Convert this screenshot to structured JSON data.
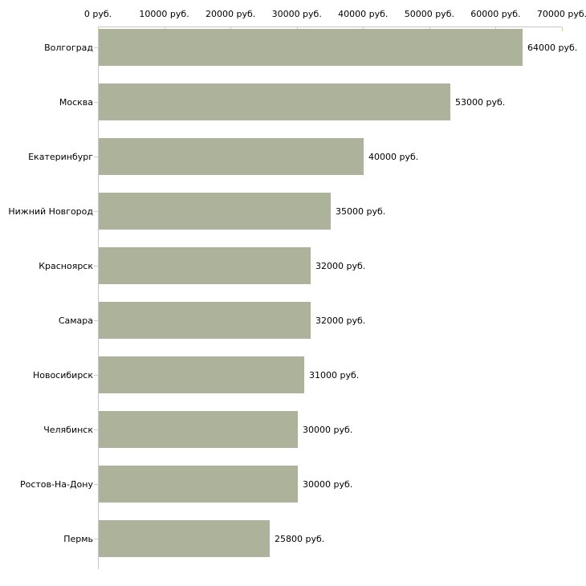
{
  "chart_data": {
    "type": "bar",
    "orientation": "horizontal",
    "title": "",
    "xlabel": "",
    "ylabel": "",
    "categories": [
      "Волгоград",
      "Москва",
      "Екатеринбург",
      "Нижний Новгород",
      "Красноярск",
      "Самара",
      "Новосибирск",
      "Челябинск",
      "Ростов-На-Дону",
      "Пермь"
    ],
    "values": [
      64000,
      53000,
      40000,
      35000,
      32000,
      32000,
      31000,
      30000,
      30000,
      25800
    ],
    "value_labels": [
      "64000 руб.",
      "53000 руб.",
      "40000 руб.",
      "35000 руб.",
      "32000 руб.",
      "32000 руб.",
      "31000 руб.",
      "30000 руб.",
      "30000 руб.",
      "25800 руб."
    ],
    "x_ticks": [
      0,
      10000,
      20000,
      30000,
      40000,
      50000,
      60000,
      70000
    ],
    "x_tick_labels": [
      "0 руб.",
      "10000 руб.",
      "20000 руб.",
      "30000 руб.",
      "40000 руб.",
      "50000 руб.",
      "60000 руб.",
      "70000 руб."
    ],
    "xlim": [
      0,
      70000
    ],
    "grid": false,
    "legend": false,
    "axis_position": "top-left",
    "colors": {
      "bar": "#adb39b",
      "axis_line": "#c8c8c8",
      "tick_mark": "#d6d0a5",
      "text": "#000000",
      "background": "#ffffff"
    }
  }
}
